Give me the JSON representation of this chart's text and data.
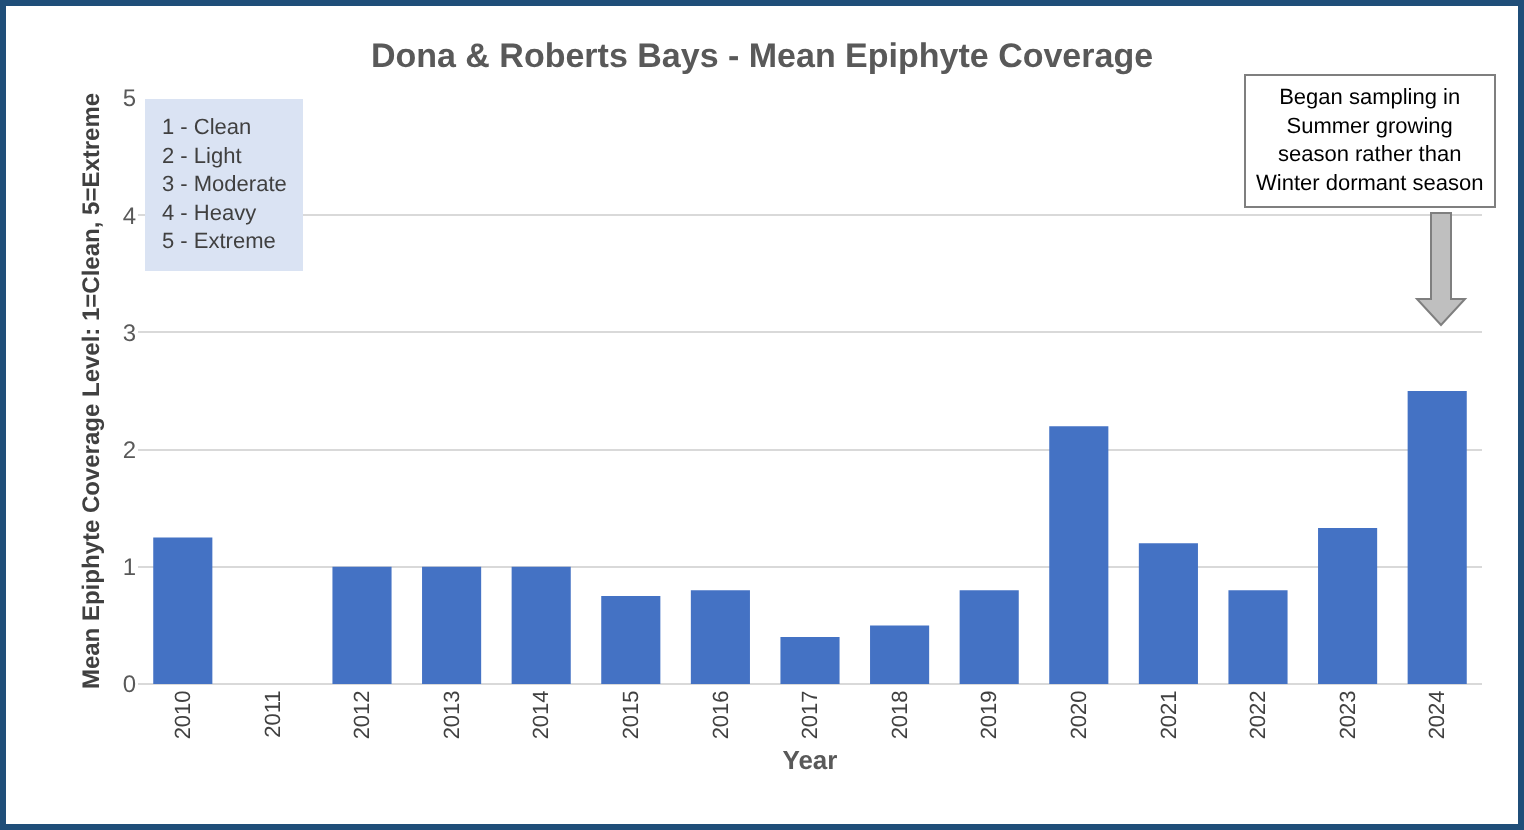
{
  "chart_data": {
    "type": "bar",
    "title": "Dona & Roberts Bays - Mean Epiphyte Coverage",
    "xlabel": "Year",
    "ylabel": "Mean Epiphyte Coverage Level: 1=Clean, 5=Extreme",
    "categories": [
      "2010",
      "2011",
      "2012",
      "2013",
      "2014",
      "2015",
      "2016",
      "2017",
      "2018",
      "2019",
      "2020",
      "2021",
      "2022",
      "2023",
      "2024"
    ],
    "values": [
      1.25,
      null,
      1,
      1,
      1,
      0.75,
      0.8,
      0.4,
      0.5,
      0.8,
      2.2,
      1.2,
      0.8,
      1.33,
      2.5
    ],
    "color": "#4472c4",
    "ylim": [
      0,
      5
    ],
    "yticks": [
      0,
      1,
      2,
      3,
      4,
      5
    ],
    "grid": "y",
    "legend": false,
    "annotations": [
      "1 - Clean\n2 - Light\n3 - Moderate\n4 - Heavy\n5 - Extreme",
      "Began sampling in\nSummer growing\nseason rather than\nWinter dormant season"
    ]
  }
}
